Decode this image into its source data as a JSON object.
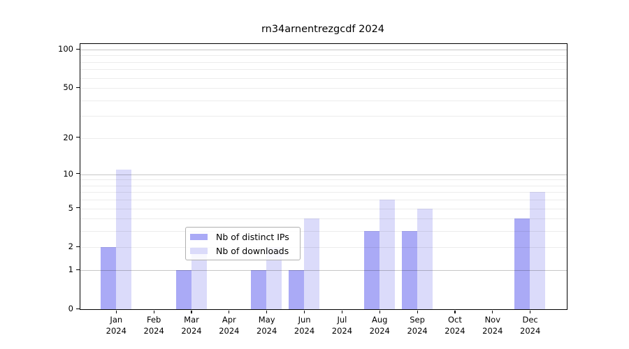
{
  "chart_data": {
    "type": "bar",
    "title": "rn34arnentrezgcdf 2024",
    "categories": [
      "Jan",
      "Feb",
      "Mar",
      "Apr",
      "May",
      "Jun",
      "Jul",
      "Aug",
      "Sep",
      "Oct",
      "Nov",
      "Dec"
    ],
    "x_sub_label": "2024",
    "series": [
      {
        "name": "Nb of distinct IPs",
        "color": "#aaaaf6",
        "values": [
          2,
          0,
          1,
          0,
          1,
          1,
          0,
          3,
          3,
          0,
          0,
          4
        ]
      },
      {
        "name": "Nb of downloads",
        "color": "#dbdbfa",
        "values": [
          11,
          0,
          2,
          0,
          2,
          4,
          0,
          6,
          5,
          0,
          0,
          7
        ]
      }
    ],
    "xlabel": "",
    "ylabel": "",
    "y_axis": {
      "scale": "log1p",
      "tick_values": [
        0,
        1,
        2,
        5,
        10,
        20,
        50,
        100
      ],
      "major_gridline_values": [
        1,
        10,
        100
      ],
      "minor_gridline_values": [
        2,
        3,
        4,
        5,
        6,
        7,
        8,
        9,
        20,
        30,
        40,
        50,
        60,
        70,
        80,
        90
      ],
      "range_top_value": 110
    },
    "grid": "on",
    "legend_position": "lower center"
  },
  "colors": {
    "background": "#ffffff",
    "frame": "#000000",
    "bar_distinct_ips": "#aaaaf6",
    "bar_downloads": "#dbdbfa",
    "major_gridline": "#c8c8c8",
    "minor_gridline": "#ebebeb"
  }
}
